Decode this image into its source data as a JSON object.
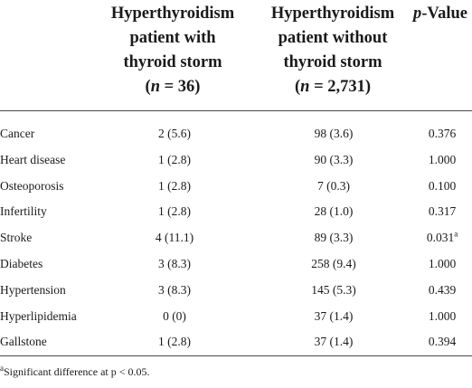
{
  "header": {
    "col1": {
      "line1": "Hyperthyroidism",
      "line2": "patient with",
      "line3": "thyroid storm",
      "n_open": "(",
      "n_var": "n",
      "n_rest": " = 36)"
    },
    "col2": {
      "line1": "Hyperthyroidism",
      "line2": "patient without",
      "line3": "thyroid storm",
      "n_open": "(",
      "n_var": "n",
      "n_rest": " = 2,731)"
    },
    "col3": {
      "p_italic": "p",
      "p_rest": "-Value"
    }
  },
  "rows": [
    {
      "label": "Cancer",
      "with_storm": "2 (5.6)",
      "without_storm": "98 (3.6)",
      "p_value": "0.376",
      "sup": ""
    },
    {
      "label": "Heart disease",
      "with_storm": "1 (2.8)",
      "without_storm": "90 (3.3)",
      "p_value": "1.000",
      "sup": ""
    },
    {
      "label": "Osteoporosis",
      "with_storm": "1 (2.8)",
      "without_storm": "7 (0.3)",
      "p_value": "0.100",
      "sup": ""
    },
    {
      "label": "Infertility",
      "with_storm": "1 (2.8)",
      "without_storm": "28 (1.0)",
      "p_value": "0.317",
      "sup": ""
    },
    {
      "label": "Stroke",
      "with_storm": "4 (11.1)",
      "without_storm": "89 (3.3)",
      "p_value": "0.031",
      "sup": "a"
    },
    {
      "label": "Diabetes",
      "with_storm": "3 (8.3)",
      "without_storm": "258 (9.4)",
      "p_value": "1.000",
      "sup": ""
    },
    {
      "label": "Hypertension",
      "with_storm": "3 (8.3)",
      "without_storm": "145 (5.3)",
      "p_value": "0.439",
      "sup": ""
    },
    {
      "label": "Hyperlipidemia",
      "with_storm": "0 (0)",
      "without_storm": "37 (1.4)",
      "p_value": "1.000",
      "sup": ""
    },
    {
      "label": "Gallstone",
      "with_storm": "1 (2.8)",
      "without_storm": "37 (1.4)",
      "p_value": "0.394",
      "sup": ""
    }
  ],
  "footnote": {
    "marker": "a",
    "text": "Significant difference at p < 0.05."
  }
}
